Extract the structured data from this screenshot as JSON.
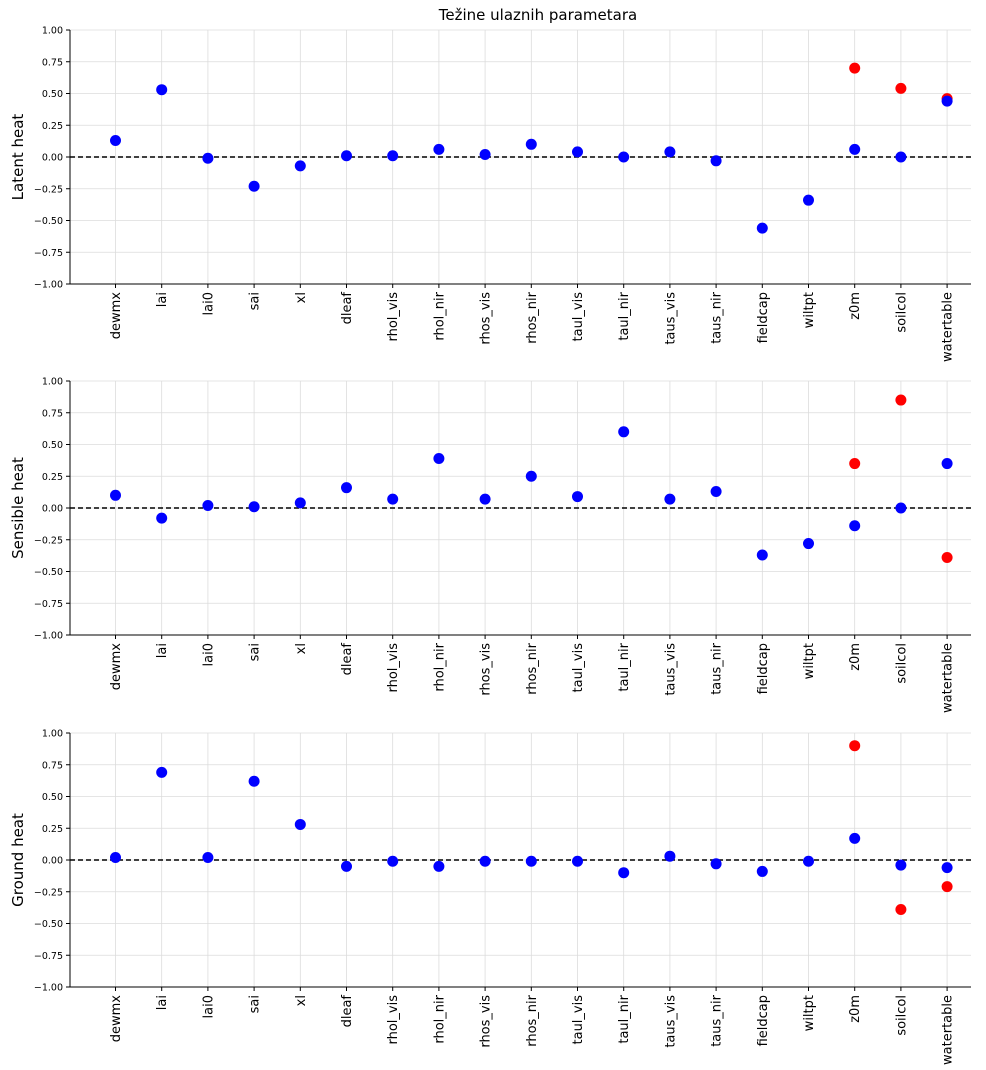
{
  "title": "Težine ulaznih parametara",
  "colors": {
    "blue": "#0000ff",
    "red": "#ff0000"
  },
  "chart_data": [
    {
      "type": "scatter",
      "ylabel": "Latent heat",
      "ylim": [
        -1.0,
        1.0
      ],
      "yticks": [
        "1.00",
        "0.75",
        "0.50",
        "0.25",
        "0.00",
        "−0.25",
        "−0.50",
        "−0.75",
        "−1.00"
      ],
      "categories": [
        "dewmx",
        "lai",
        "lai0",
        "sai",
        "xl",
        "dleaf",
        "rhol_vis",
        "rhol_nir",
        "rhos_vis",
        "rhos_nir",
        "taul_vis",
        "taul_nir",
        "taus_vis",
        "taus_nir",
        "fieldcap",
        "wiltpt",
        "z0m",
        "soilcol",
        "watertable"
      ],
      "grid": true,
      "series": [
        {
          "color": "blue",
          "values": [
            0.13,
            0.53,
            -0.01,
            -0.23,
            -0.07,
            0.01,
            0.01,
            0.06,
            0.02,
            0.1,
            0.04,
            0.0,
            0.04,
            -0.03,
            -0.56,
            -0.34,
            0.06,
            0.0,
            0.44
          ]
        },
        {
          "color": "red",
          "values": [
            null,
            null,
            null,
            null,
            null,
            null,
            null,
            null,
            null,
            null,
            null,
            null,
            null,
            null,
            null,
            null,
            0.7,
            0.54,
            0.46
          ]
        }
      ]
    },
    {
      "type": "scatter",
      "ylabel": "Sensible heat",
      "ylim": [
        -1.0,
        1.0
      ],
      "yticks": [
        "1.00",
        "0.75",
        "0.50",
        "0.25",
        "0.00",
        "−0.25",
        "−0.50",
        "−0.75",
        "−1.00"
      ],
      "categories": [
        "dewmx",
        "lai",
        "lai0",
        "sai",
        "xl",
        "dleaf",
        "rhol_vis",
        "rhol_nir",
        "rhos_vis",
        "rhos_nir",
        "taul_vis",
        "taul_nir",
        "taus_vis",
        "taus_nir",
        "fieldcap",
        "wiltpt",
        "z0m",
        "soilcol",
        "watertable"
      ],
      "grid": true,
      "series": [
        {
          "color": "blue",
          "values": [
            0.1,
            -0.08,
            0.02,
            0.01,
            0.04,
            0.16,
            0.07,
            0.39,
            0.07,
            0.25,
            0.09,
            0.6,
            0.07,
            0.13,
            -0.37,
            -0.28,
            -0.14,
            0.0,
            0.35
          ]
        },
        {
          "color": "red",
          "values": [
            null,
            null,
            null,
            null,
            null,
            null,
            null,
            null,
            null,
            null,
            null,
            null,
            null,
            null,
            null,
            null,
            0.35,
            0.85,
            -0.39
          ]
        }
      ]
    },
    {
      "type": "scatter",
      "ylabel": "Ground heat",
      "ylim": [
        -1.0,
        1.0
      ],
      "yticks": [
        "1.00",
        "0.75",
        "0.50",
        "0.25",
        "0.00",
        "−0.25",
        "−0.50",
        "−0.75",
        "−1.00"
      ],
      "categories": [
        "dewmx",
        "lai",
        "lai0",
        "sai",
        "xl",
        "dleaf",
        "rhol_vis",
        "rhol_nir",
        "rhos_vis",
        "rhos_nir",
        "taul_vis",
        "taul_nir",
        "taus_vis",
        "taus_nir",
        "fieldcap",
        "wiltpt",
        "z0m",
        "soilcol",
        "watertable"
      ],
      "grid": true,
      "series": [
        {
          "color": "blue",
          "values": [
            0.02,
            0.69,
            0.02,
            0.62,
            0.28,
            -0.05,
            -0.01,
            -0.05,
            -0.01,
            -0.01,
            -0.01,
            -0.1,
            0.03,
            -0.03,
            -0.09,
            -0.01,
            0.17,
            -0.04,
            -0.06
          ]
        },
        {
          "color": "red",
          "values": [
            null,
            null,
            null,
            null,
            null,
            null,
            null,
            null,
            null,
            null,
            null,
            null,
            null,
            null,
            null,
            null,
            0.9,
            -0.39,
            -0.21
          ]
        }
      ]
    }
  ]
}
